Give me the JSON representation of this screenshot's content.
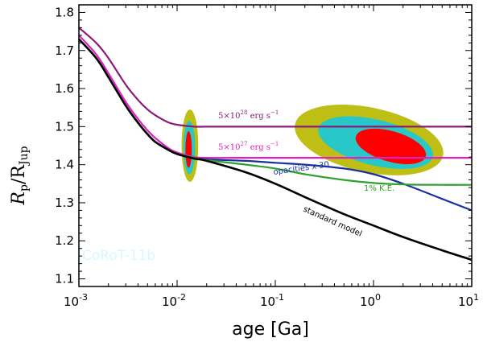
{
  "chart_data": {
    "type": "line",
    "xscale": "log",
    "xlim": [
      0.001,
      10
    ],
    "ylim": [
      1.08,
      1.82
    ],
    "xlabel": "age [Ga]",
    "ylabel": {
      "main": "R",
      "sub1": "p",
      "sep": "/R",
      "sub2": "Jup"
    },
    "x_ticks": [
      {
        "value": 0.001,
        "base": "10",
        "exp": "-3"
      },
      {
        "value": 0.01,
        "base": "10",
        "exp": "-2"
      },
      {
        "value": 0.1,
        "base": "10",
        "exp": "-1"
      },
      {
        "value": 1,
        "base": "10",
        "exp": "0"
      },
      {
        "value": 10,
        "base": "10",
        "exp": "1"
      }
    ],
    "y_ticks": [
      {
        "value": 1.1,
        "label": "1.1"
      },
      {
        "value": 1.2,
        "label": "1.2"
      },
      {
        "value": 1.3,
        "label": "1.3"
      },
      {
        "value": 1.4,
        "label": "1.4"
      },
      {
        "value": 1.5,
        "label": "1.5"
      },
      {
        "value": 1.6,
        "label": "1.6"
      },
      {
        "value": 1.7,
        "label": "1.7"
      },
      {
        "value": 1.8,
        "label": "1.8"
      }
    ],
    "planet_label": "CoRoT-11b",
    "series": [
      {
        "name": "5x10^28 erg s^-1",
        "color": "#8b1a7a",
        "x": [
          0.001,
          0.0015,
          0.002,
          0.003,
          0.004,
          0.005,
          0.006,
          0.008,
          0.01,
          0.015,
          0.02,
          0.05,
          0.1,
          1,
          10
        ],
        "y": [
          1.76,
          1.72,
          1.68,
          1.61,
          1.57,
          1.545,
          1.53,
          1.512,
          1.505,
          1.5,
          1.5,
          1.5,
          1.5,
          1.5,
          1.5
        ]
      },
      {
        "name": "5x10^27 erg s^-1",
        "color": "#e020c0",
        "x": [
          0.001,
          0.0015,
          0.002,
          0.003,
          0.004,
          0.005,
          0.006,
          0.008,
          0.01,
          0.015,
          0.02,
          0.05,
          0.1,
          1,
          10
        ],
        "y": [
          1.74,
          1.69,
          1.64,
          1.565,
          1.52,
          1.49,
          1.47,
          1.445,
          1.432,
          1.42,
          1.418,
          1.418,
          1.418,
          1.418,
          1.418
        ]
      },
      {
        "name": "opacities x 30",
        "color": "#1a30a0",
        "x": [
          0.001,
          0.0015,
          0.002,
          0.003,
          0.004,
          0.005,
          0.006,
          0.008,
          0.01,
          0.015,
          0.02,
          0.05,
          0.1,
          0.2,
          0.5,
          1,
          2,
          5,
          10
        ],
        "y": [
          1.73,
          1.68,
          1.63,
          1.555,
          1.51,
          1.48,
          1.46,
          1.44,
          1.428,
          1.418,
          1.414,
          1.41,
          1.405,
          1.4,
          1.39,
          1.375,
          1.35,
          1.31,
          1.28
        ]
      },
      {
        "name": "1% K.E.",
        "color": "#30a030",
        "x": [
          0.001,
          0.0015,
          0.002,
          0.003,
          0.004,
          0.005,
          0.006,
          0.008,
          0.01,
          0.015,
          0.02,
          0.05,
          0.1,
          0.2,
          0.5,
          1,
          2,
          5,
          10
        ],
        "y": [
          1.73,
          1.68,
          1.63,
          1.555,
          1.51,
          1.48,
          1.46,
          1.44,
          1.428,
          1.418,
          1.412,
          1.4,
          1.39,
          1.375,
          1.36,
          1.352,
          1.348,
          1.347,
          1.347
        ]
      },
      {
        "name": "standard model",
        "color": "#000000",
        "x": [
          0.001,
          0.0015,
          0.002,
          0.003,
          0.004,
          0.005,
          0.006,
          0.008,
          0.01,
          0.015,
          0.02,
          0.05,
          0.1,
          0.2,
          0.5,
          1,
          2,
          5,
          10
        ],
        "y": [
          1.73,
          1.68,
          1.63,
          1.555,
          1.51,
          1.48,
          1.46,
          1.44,
          1.428,
          1.416,
          1.41,
          1.38,
          1.35,
          1.315,
          1.27,
          1.24,
          1.21,
          1.175,
          1.15
        ]
      }
    ],
    "annotations": [
      {
        "base": "5",
        "times": "×",
        "ten": "10",
        "exp": "28",
        "unit": " erg s",
        "unit_exp": "−1",
        "color": "#8b1a7a"
      },
      {
        "base": "5",
        "times": "×",
        "ten": "10",
        "exp": "27",
        "unit": " erg s",
        "unit_exp": "−1",
        "color": "#e020c0"
      },
      {
        "text": "opacities x 30",
        "color": "#1a30a0"
      },
      {
        "text": "1% K.E.",
        "color": "#30a030"
      },
      {
        "text": "standard model",
        "color": "#000000"
      }
    ],
    "regions": [
      {
        "name": "young-solution",
        "levels": [
          {
            "color": "#bebe14",
            "cx": 0.0135,
            "cy": 1.45,
            "rx_dex": 0.085,
            "ry": 0.095,
            "angle_deg": 0
          },
          {
            "color": "#28c8c8",
            "cx": 0.0133,
            "cy": 1.445,
            "rx_dex": 0.06,
            "ry": 0.07,
            "angle_deg": 0
          },
          {
            "color": "#ff0000",
            "cx": 0.0131,
            "cy": 1.44,
            "rx_dex": 0.032,
            "ry": 0.048,
            "angle_deg": 0
          }
        ]
      },
      {
        "name": "old-solution",
        "levels": [
          {
            "color": "#bebe14",
            "cx": 0.9,
            "cy": 1.465,
            "rx_dex": 0.77,
            "ry": 0.085,
            "angle_deg": 12
          },
          {
            "color": "#28c8c8",
            "cx": 1.05,
            "cy": 1.458,
            "rx_dex": 0.6,
            "ry": 0.06,
            "angle_deg": 14
          },
          {
            "color": "#ff0000",
            "cx": 1.5,
            "cy": 1.448,
            "rx_dex": 0.37,
            "ry": 0.04,
            "angle_deg": 16
          }
        ]
      }
    ]
  }
}
